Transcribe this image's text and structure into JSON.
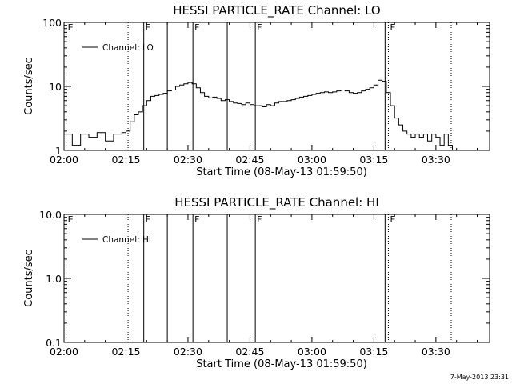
{
  "footer_timestamp": "7-May-2013 23:31",
  "chart_data": [
    {
      "type": "line",
      "title": "HESSI PARTICLE_RATE Channel: LO",
      "xlabel": "Start Time (08-May-13 01:59:50)",
      "ylabel": "Counts/sec",
      "y_scale": "log",
      "ylim": [
        1,
        100
      ],
      "y_ticks": [
        1,
        10,
        100
      ],
      "y_tick_labels": [
        "1",
        "10",
        "100"
      ],
      "xlim_minutes": [
        0,
        103
      ],
      "x_ticks_minutes": [
        0,
        15,
        30,
        45,
        60,
        75,
        90
      ],
      "x_tick_labels": [
        "02:00",
        "02:15",
        "02:30",
        "02:45",
        "03:00",
        "03:15",
        "03:30"
      ],
      "legend": {
        "placement": "top-left",
        "entries": [
          "Channel: LO"
        ]
      },
      "markers": [
        {
          "t": 0.5,
          "label": "E",
          "style": "dotted"
        },
        {
          "t": 15.5,
          "label": "",
          "style": "dotted"
        },
        {
          "t": 19.3,
          "label": "F",
          "style": "solid"
        },
        {
          "t": 25.0,
          "label": "",
          "style": "solid"
        },
        {
          "t": 31.2,
          "label": "F",
          "style": "solid"
        },
        {
          "t": 39.5,
          "label": "",
          "style": "solid"
        },
        {
          "t": 46.3,
          "label": "F",
          "style": "solid"
        },
        {
          "t": 77.7,
          "label": "",
          "style": "solid"
        },
        {
          "t": 78.5,
          "label": "E",
          "style": "dotted"
        },
        {
          "t": 93.7,
          "label": "",
          "style": "dotted"
        }
      ],
      "series": [
        {
          "name": "Channel: LO",
          "x_minutes": [
            0,
            2,
            4,
            6,
            8,
            10,
            12,
            14,
            15,
            16,
            17,
            18,
            19,
            20,
            21,
            22,
            23,
            24,
            25,
            26,
            27,
            28,
            29,
            30,
            31,
            32,
            33,
            34,
            35,
            36,
            37,
            38,
            39,
            40,
            41,
            42,
            43,
            44,
            45,
            46,
            47,
            48,
            49,
            50,
            51,
            52,
            53,
            54,
            55,
            56,
            57,
            58,
            59,
            60,
            61,
            62,
            63,
            64,
            65,
            66,
            67,
            68,
            69,
            70,
            71,
            72,
            73,
            74,
            75,
            76,
            77,
            78,
            79,
            80,
            81,
            82,
            83,
            84,
            85,
            86,
            87,
            88,
            89,
            90,
            91,
            92,
            93,
            94
          ],
          "y": [
            1.8,
            1.2,
            1.8,
            1.6,
            1.9,
            1.4,
            1.8,
            1.9,
            2.0,
            2.8,
            3.6,
            4.0,
            5.0,
            6.0,
            7.0,
            7.2,
            7.5,
            7.8,
            8.5,
            8.8,
            10.0,
            10.5,
            11.0,
            11.5,
            11.0,
            9.5,
            8.0,
            7.0,
            6.6,
            6.8,
            6.5,
            6.0,
            6.2,
            5.8,
            5.5,
            5.4,
            5.2,
            5.5,
            5.2,
            5.0,
            5.0,
            4.8,
            5.2,
            5.0,
            5.5,
            5.8,
            5.8,
            6.0,
            6.2,
            6.5,
            6.8,
            7.0,
            7.2,
            7.5,
            7.8,
            8.0,
            8.2,
            8.0,
            8.2,
            8.5,
            8.8,
            8.5,
            8.0,
            7.8,
            8.0,
            8.5,
            9.0,
            9.5,
            10.5,
            12.5,
            12.0,
            8.0,
            5.0,
            3.2,
            2.5,
            2.0,
            1.8,
            1.6,
            1.8,
            1.6,
            1.8,
            1.4,
            1.8,
            1.6,
            1.2,
            1.8,
            1.2,
            1.0
          ]
        }
      ]
    },
    {
      "type": "line",
      "title": "HESSI PARTICLE_RATE Channel: HI",
      "xlabel": "Start Time (08-May-13 01:59:50)",
      "ylabel": "Counts/sec",
      "y_scale": "log",
      "ylim": [
        0.1,
        10
      ],
      "y_ticks": [
        0.1,
        1,
        10
      ],
      "y_tick_labels": [
        "0.1",
        "1.0",
        "10.0"
      ],
      "xlim_minutes": [
        0,
        103
      ],
      "x_ticks_minutes": [
        0,
        15,
        30,
        45,
        60,
        75,
        90
      ],
      "x_tick_labels": [
        "02:00",
        "02:15",
        "02:30",
        "02:45",
        "03:00",
        "03:15",
        "03:30"
      ],
      "legend": {
        "placement": "top-left",
        "entries": [
          "Channel: HI"
        ]
      },
      "markers": [
        {
          "t": 0.5,
          "label": "E",
          "style": "dotted"
        },
        {
          "t": 15.5,
          "label": "",
          "style": "dotted"
        },
        {
          "t": 19.3,
          "label": "F",
          "style": "solid"
        },
        {
          "t": 25.0,
          "label": "",
          "style": "solid"
        },
        {
          "t": 31.2,
          "label": "F",
          "style": "solid"
        },
        {
          "t": 39.5,
          "label": "",
          "style": "solid"
        },
        {
          "t": 46.3,
          "label": "F",
          "style": "solid"
        },
        {
          "t": 77.7,
          "label": "",
          "style": "solid"
        },
        {
          "t": 78.5,
          "label": "E",
          "style": "dotted"
        },
        {
          "t": 93.7,
          "label": "",
          "style": "dotted"
        }
      ],
      "series": [
        {
          "name": "Channel: HI",
          "x_minutes": [],
          "y": []
        }
      ]
    }
  ]
}
